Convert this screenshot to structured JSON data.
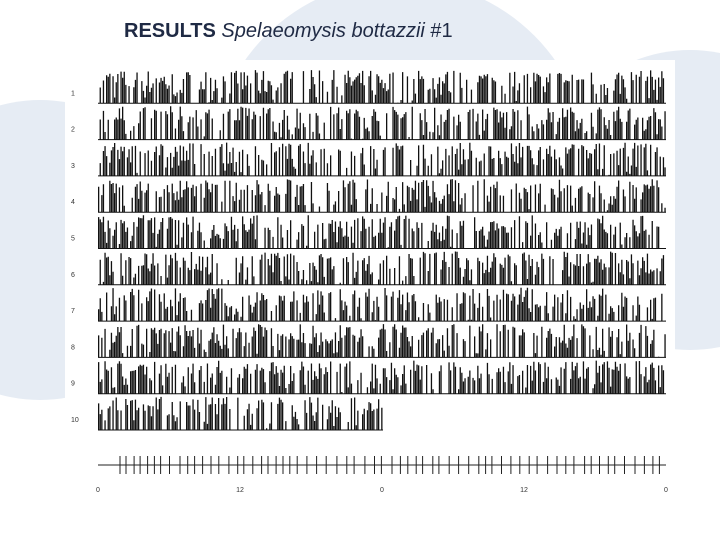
{
  "title": {
    "bold": "RESULTS",
    "italic": "Spelaeomysis bottazzii",
    "number": "#1"
  },
  "actogram": {
    "row_labels": [
      "1",
      "2",
      "3",
      "4",
      "5",
      "6",
      "7",
      "8",
      "9",
      "10"
    ],
    "axis_labels": [
      "0",
      "12",
      "0",
      "12",
      "0"
    ]
  }
}
